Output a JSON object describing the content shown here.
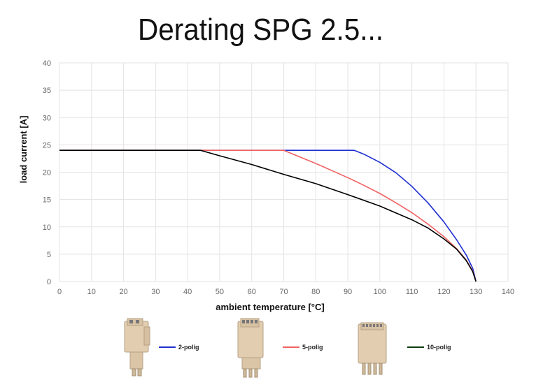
{
  "title": "Derating SPG 2.5...",
  "chart_data": {
    "type": "line",
    "title": "Derating SPG 2.5...",
    "xlabel": "ambient temperature [°C]",
    "ylabel": "load current [A]",
    "xlim": [
      0,
      140
    ],
    "ylim": [
      0,
      40
    ],
    "xticks": [
      0,
      10,
      20,
      30,
      40,
      50,
      60,
      70,
      80,
      90,
      100,
      110,
      120,
      130,
      140
    ],
    "yticks": [
      0,
      5,
      10,
      15,
      20,
      25,
      30,
      35,
      40
    ],
    "grid": true,
    "legend_position": "bottom",
    "series": [
      {
        "name": "2-polig",
        "color": "#1f2fd1",
        "points": [
          [
            0,
            24
          ],
          [
            92,
            24
          ],
          [
            95,
            23.3
          ],
          [
            100,
            21.8
          ],
          [
            105,
            19.9
          ],
          [
            110,
            17.4
          ],
          [
            115,
            14.4
          ],
          [
            120,
            10.9
          ],
          [
            124,
            7.6
          ],
          [
            127,
            4.8
          ],
          [
            129,
            2.4
          ],
          [
            130,
            0
          ]
        ]
      },
      {
        "name": "5-polig",
        "color": "#f06262",
        "points": [
          [
            0,
            24
          ],
          [
            70,
            24
          ],
          [
            75,
            22.8
          ],
          [
            80,
            21.6
          ],
          [
            85,
            20.3
          ],
          [
            90,
            19.0
          ],
          [
            95,
            17.6
          ],
          [
            100,
            16.1
          ],
          [
            105,
            14.4
          ],
          [
            110,
            12.6
          ],
          [
            115,
            10.5
          ],
          [
            120,
            8.2
          ],
          [
            124,
            6.0
          ],
          [
            127,
            3.9
          ],
          [
            129,
            1.9
          ],
          [
            130,
            0
          ]
        ]
      },
      {
        "name": "10-polig",
        "color": "#000000",
        "points": [
          [
            0,
            24
          ],
          [
            44,
            24
          ],
          [
            50,
            23.0
          ],
          [
            60,
            21.4
          ],
          [
            70,
            19.6
          ],
          [
            80,
            17.9
          ],
          [
            90,
            15.9
          ],
          [
            100,
            13.8
          ],
          [
            110,
            11.3
          ],
          [
            115,
            9.8
          ],
          [
            120,
            7.8
          ],
          [
            124,
            5.9
          ],
          [
            127,
            3.8
          ],
          [
            129,
            1.8
          ],
          [
            130,
            0
          ]
        ]
      }
    ]
  },
  "legend": {
    "items": [
      {
        "label": "2-polig",
        "color": "#1f2fd1"
      },
      {
        "label": "5-polig",
        "color": "#f06262"
      },
      {
        "label": "10-polig",
        "color": "#0f3d10"
      }
    ]
  }
}
